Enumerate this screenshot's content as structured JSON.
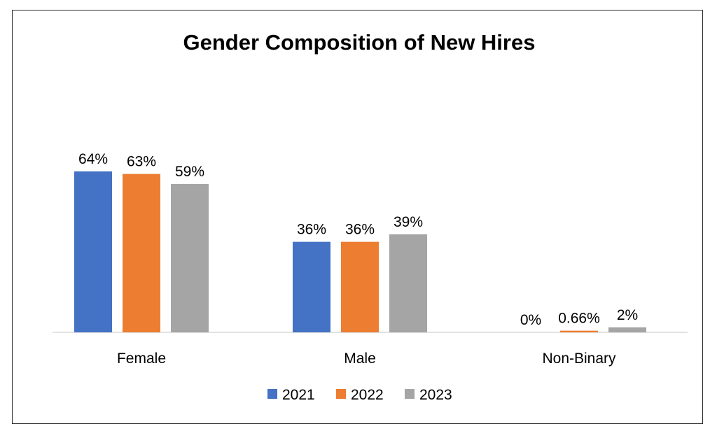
{
  "chart_data": {
    "type": "bar",
    "title": "Gender Composition of New Hires",
    "xlabel": "",
    "ylabel": "",
    "categories": [
      "Female",
      "Male",
      "Non-Binary"
    ],
    "series": [
      {
        "name": "2021",
        "color": "#4472c4",
        "values": [
          64,
          36,
          0
        ],
        "labels": [
          "64%",
          "36%",
          "0%"
        ]
      },
      {
        "name": "2022",
        "color": "#ed7d31",
        "values": [
          63,
          36,
          0.66
        ],
        "labels": [
          "63%",
          "36%",
          "0.66%"
        ]
      },
      {
        "name": "2023",
        "color": "#a5a5a5",
        "values": [
          59,
          39,
          2
        ],
        "labels": [
          "59%",
          "39%",
          "2%"
        ]
      }
    ],
    "ylim": [
      0,
      64
    ],
    "grid": false,
    "legend_position": "bottom",
    "axis_color": "#d9d9d9"
  }
}
